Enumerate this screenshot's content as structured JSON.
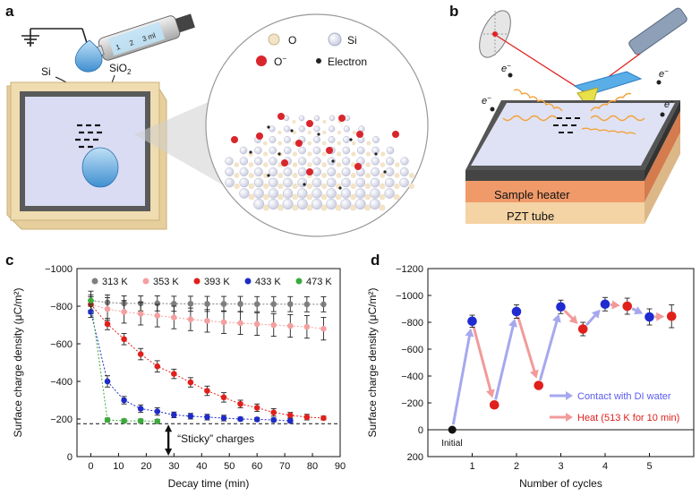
{
  "panels": {
    "a": {
      "letter": "a",
      "syringe": {
        "marks": [
          "1",
          "2",
          "3 ml"
        ]
      },
      "labels": {
        "si": "Si",
        "sio2": "SiO",
        "sio2_sub": "2"
      },
      "legend": {
        "o": "O",
        "si": "Si",
        "o_minus": "O",
        "o_minus_sup": "−",
        "electron": "Electron"
      }
    },
    "b": {
      "letter": "b",
      "electron_label": "e",
      "electron_sup": "−",
      "heater_label": "Sample heater",
      "pzt_label": "PZT tube"
    }
  },
  "chart_data": [
    {
      "panel": "c",
      "type": "scatter",
      "xlabel": "Decay time (min)",
      "ylabel": "Surface charge density (μC/m²)",
      "ylabel_parts": {
        "main": "Surface charge density (μC/m",
        "sup": "2",
        "end": ")"
      },
      "xlim": [
        -5,
        90
      ],
      "ylim": [
        0,
        -1000
      ],
      "xticks": [
        "0",
        "10",
        "20",
        "30",
        "40",
        "50",
        "60",
        "70",
        "80",
        "90"
      ],
      "yticks": [
        "−1000",
        "−800",
        "−600",
        "−400",
        "−200",
        "0"
      ],
      "series": [
        {
          "name": "313 K",
          "color": "#7f7f7f",
          "x": [
            0,
            6,
            12,
            18,
            24,
            30,
            36,
            42,
            48,
            54,
            60,
            66,
            72,
            78,
            84
          ],
          "y": [
            -830,
            -820,
            -815,
            -815,
            -815,
            -813,
            -813,
            -812,
            -812,
            -812,
            -811,
            -811,
            -811,
            -810,
            -810
          ],
          "err": [
            50,
            40,
            40,
            40,
            40,
            40,
            40,
            40,
            40,
            40,
            40,
            40,
            40,
            40,
            40
          ]
        },
        {
          "name": "353 K",
          "color": "#f4a0a0",
          "x": [
            0,
            6,
            12,
            18,
            24,
            30,
            36,
            42,
            48,
            54,
            60,
            66,
            72,
            78,
            84
          ],
          "y": [
            -810,
            -785,
            -770,
            -760,
            -750,
            -740,
            -730,
            -722,
            -715,
            -710,
            -705,
            -700,
            -695,
            -690,
            -680
          ],
          "err": [
            50,
            60,
            60,
            60,
            60,
            60,
            60,
            60,
            60,
            60,
            60,
            60,
            60,
            60,
            60
          ]
        },
        {
          "name": "393 K",
          "color": "#e0201b",
          "x": [
            0,
            6,
            12,
            18,
            24,
            30,
            36,
            42,
            48,
            54,
            60,
            66,
            72,
            78,
            84
          ],
          "y": [
            -810,
            -705,
            -625,
            -545,
            -480,
            -440,
            -395,
            -350,
            -315,
            -280,
            -260,
            -235,
            -220,
            -210,
            -205
          ],
          "err": [
            40,
            30,
            30,
            30,
            30,
            25,
            25,
            25,
            25,
            20,
            20,
            20,
            15,
            15,
            10
          ]
        },
        {
          "name": "433 K",
          "color": "#1f2bc7",
          "x": [
            0,
            6,
            12,
            18,
            24,
            30,
            36,
            42,
            48,
            54,
            60,
            66,
            72
          ],
          "y": [
            -770,
            -400,
            -300,
            -255,
            -240,
            -222,
            -215,
            -210,
            -205,
            -200,
            -198,
            -195,
            -190
          ],
          "err": [
            30,
            30,
            20,
            20,
            20,
            15,
            15,
            15,
            15,
            10,
            10,
            10,
            10
          ]
        },
        {
          "name": "473 K",
          "color": "#3aab3a",
          "x": [
            0,
            6,
            12,
            18,
            24
          ],
          "y": [
            -830,
            -195,
            -190,
            -190,
            -188
          ],
          "err": [
            20,
            10,
            10,
            10,
            10
          ]
        }
      ],
      "annotation": "“Sticky” charges",
      "sticky_level": -175
    },
    {
      "panel": "d",
      "type": "scatter",
      "xlabel": "Number of cycles",
      "ylabel": "Surface charge density (μC/m²)",
      "ylabel_parts": {
        "main": "Surface charge density (μC/m",
        "sup": "2",
        "end": ")"
      },
      "xlim": [
        0,
        6
      ],
      "ylim": [
        200,
        -1200
      ],
      "xticks": [
        "1",
        "2",
        "3",
        "4",
        "5"
      ],
      "yticks": [
        "−1200",
        "−1000",
        "−800",
        "−600",
        "−400",
        "−200",
        "0",
        "200"
      ],
      "initial_label": "Initial",
      "points": [
        {
          "x": 0.55,
          "y": 0,
          "err": 0,
          "kind": "initial"
        },
        {
          "x": 1.0,
          "y": -808,
          "err": 45,
          "kind": "water"
        },
        {
          "x": 1.5,
          "y": -185,
          "err": 0,
          "kind": "heat"
        },
        {
          "x": 2.0,
          "y": -880,
          "err": 50,
          "kind": "water"
        },
        {
          "x": 2.5,
          "y": -330,
          "err": 0,
          "kind": "heat"
        },
        {
          "x": 3.0,
          "y": -915,
          "err": 50,
          "kind": "water"
        },
        {
          "x": 3.5,
          "y": -750,
          "err": 50,
          "kind": "heat"
        },
        {
          "x": 4.0,
          "y": -935,
          "err": 50,
          "kind": "water"
        },
        {
          "x": 4.5,
          "y": -920,
          "err": 60,
          "kind": "heat"
        },
        {
          "x": 5.0,
          "y": -840,
          "err": 60,
          "kind": "water"
        },
        {
          "x": 5.5,
          "y": -845,
          "err": 85,
          "kind": "heat"
        }
      ],
      "legend": [
        {
          "name": "Contact with DI water",
          "color": "#5a5bf0",
          "arrow_color": "#a6a8ee"
        },
        {
          "name": "Heat (513 K for 10 min)",
          "color": "#e0201b",
          "arrow_color": "#f29a9a"
        }
      ]
    }
  ],
  "panel_letters": {
    "c": "c",
    "d": "d"
  }
}
